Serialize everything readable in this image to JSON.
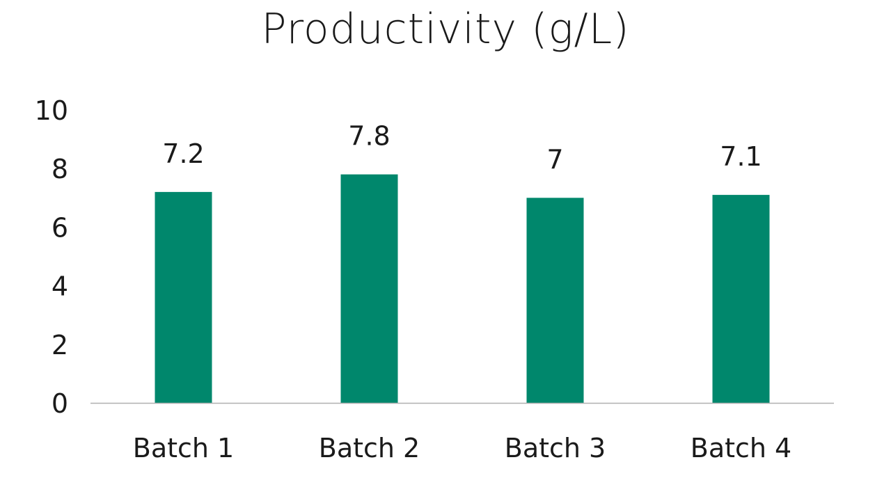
{
  "chart_data": {
    "type": "bar",
    "title": "Productivity (g/L)",
    "xlabel": "",
    "ylabel": "",
    "categories": [
      "Batch 1",
      "Batch 2",
      "Batch 3",
      "Batch 4"
    ],
    "values": [
      7.2,
      7.8,
      7,
      7.1
    ],
    "data_labels": [
      "7.2",
      "7.8",
      "7",
      "7.1"
    ],
    "yticks": [
      0,
      2,
      4,
      6,
      8,
      10
    ],
    "ylim": [
      0,
      10
    ],
    "grid": false,
    "legend": "none",
    "bar_color": "#00876c",
    "axis_color": "#b0b0b0"
  }
}
